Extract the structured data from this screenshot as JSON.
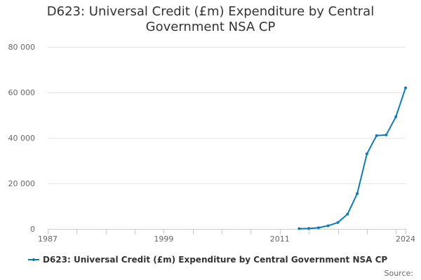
{
  "title_lines": [
    "D623: Universal Credit (£m) Expenditure by Central",
    "Government NSA CP"
  ],
  "source_label": "Source:",
  "colors": {
    "series": "#0f7bb8",
    "grid": "#e6e6e6",
    "axis": "#cccccc",
    "text": "#333333",
    "tick_text": "#666666"
  },
  "chart_data": {
    "type": "line",
    "title": "D623: Universal Credit (£m) Expenditure by Central Government NSA CP",
    "xlabel": "",
    "ylabel": "",
    "xlim": [
      1987,
      2024
    ],
    "ylim": [
      0,
      80000
    ],
    "grid": true,
    "legend_position": "bottom",
    "x_tick_labels": [
      "1987",
      "1999",
      "2011",
      "2024"
    ],
    "x_ticks": [
      1987,
      1999,
      2011,
      2024
    ],
    "y_ticks": [
      0,
      20000,
      40000,
      60000,
      80000
    ],
    "y_tick_labels": [
      "0",
      "20 000",
      "40 000",
      "60 000",
      "80 000"
    ],
    "series": [
      {
        "name": "D623: Universal Credit (£m) Expenditure by Central Government NSA CP",
        "x": [
          2013,
          2014,
          2015,
          2016,
          2017,
          2018,
          2019,
          2020,
          2021,
          2022,
          2023,
          2024
        ],
        "values": [
          100,
          200,
          500,
          1400,
          2800,
          6500,
          15500,
          33000,
          41000,
          41300,
          49300,
          62000
        ]
      }
    ]
  }
}
